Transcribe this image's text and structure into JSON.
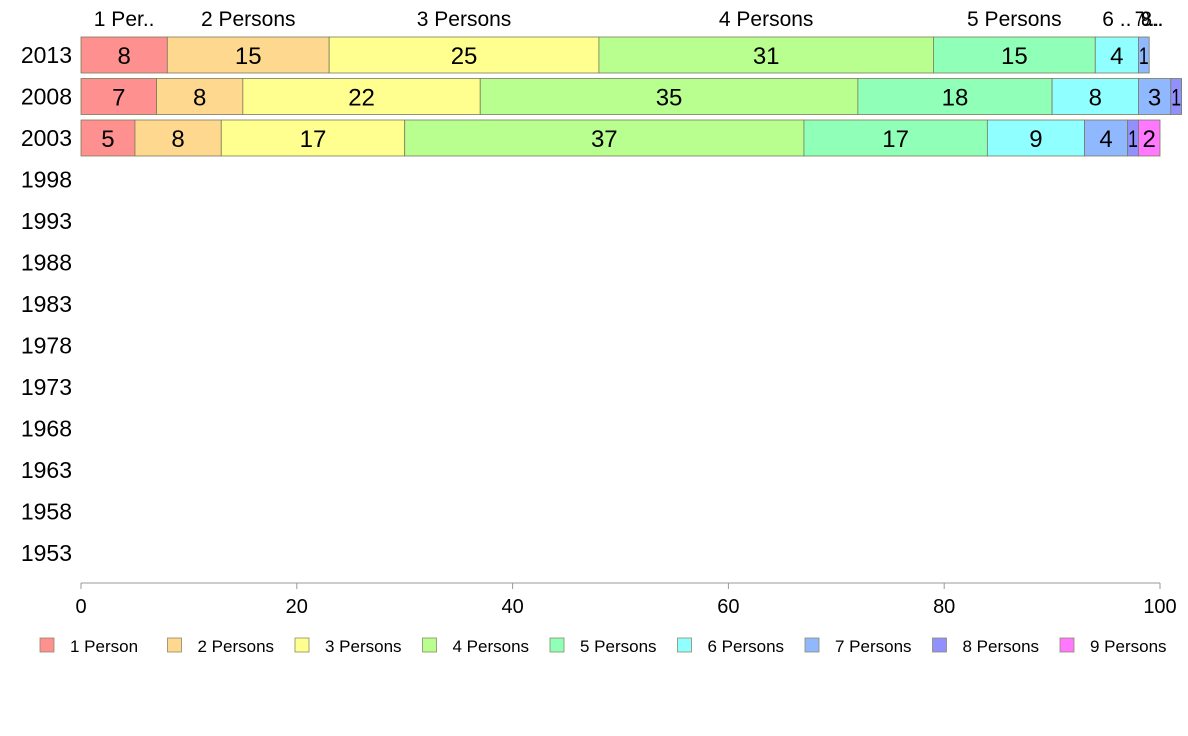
{
  "chart_data": {
    "type": "bar",
    "orientation": "horizontal",
    "stacked": true,
    "categories": [
      "2013",
      "2008",
      "2003",
      "1998",
      "1993",
      "1988",
      "1983",
      "1978",
      "1973",
      "1968",
      "1963",
      "1958",
      "1953"
    ],
    "series": [
      {
        "name": "1 Person",
        "color": "#ff9090",
        "values": [
          8,
          7,
          5,
          null,
          null,
          null,
          null,
          null,
          null,
          null,
          null,
          null,
          null
        ]
      },
      {
        "name": "2 Persons",
        "color": "#ffd890",
        "values": [
          15,
          8,
          8,
          null,
          null,
          null,
          null,
          null,
          null,
          null,
          null,
          null,
          null
        ]
      },
      {
        "name": "3 Persons",
        "color": "#ffff90",
        "values": [
          25,
          22,
          17,
          null,
          null,
          null,
          null,
          null,
          null,
          null,
          null,
          null,
          null
        ]
      },
      {
        "name": "4 Persons",
        "color": "#b8ff90",
        "values": [
          31,
          35,
          37,
          null,
          null,
          null,
          null,
          null,
          null,
          null,
          null,
          null,
          null
        ]
      },
      {
        "name": "5 Persons",
        "color": "#90ffb8",
        "values": [
          15,
          18,
          17,
          null,
          null,
          null,
          null,
          null,
          null,
          null,
          null,
          null,
          null
        ]
      },
      {
        "name": "6 Persons",
        "color": "#90ffff",
        "values": [
          4,
          8,
          9,
          null,
          null,
          null,
          null,
          null,
          null,
          null,
          null,
          null,
          null
        ]
      },
      {
        "name": "7 Persons",
        "color": "#90b8ff",
        "values": [
          1,
          3,
          4,
          null,
          null,
          null,
          null,
          null,
          null,
          null,
          null,
          null,
          null
        ]
      },
      {
        "name": "8 Persons",
        "color": "#9090ff",
        "values": [
          0,
          1,
          1,
          null,
          null,
          null,
          null,
          null,
          null,
          null,
          null,
          null,
          null
        ]
      },
      {
        "name": "9 Persons",
        "color": "#ff78ff",
        "values": [
          0,
          0,
          2,
          null,
          null,
          null,
          null,
          null,
          null,
          null,
          null,
          null,
          null
        ]
      }
    ],
    "top_labels": [
      "1 Per..",
      "2 Persons",
      "3 Persons",
      "4 Persons",
      "5 Persons",
      "6 ..",
      "7..",
      "8..",
      "9..."
    ],
    "xlim": [
      0,
      100
    ],
    "xticks": [
      0,
      20,
      40,
      60,
      80,
      100
    ],
    "legend_position": "bottom",
    "grid": false
  }
}
